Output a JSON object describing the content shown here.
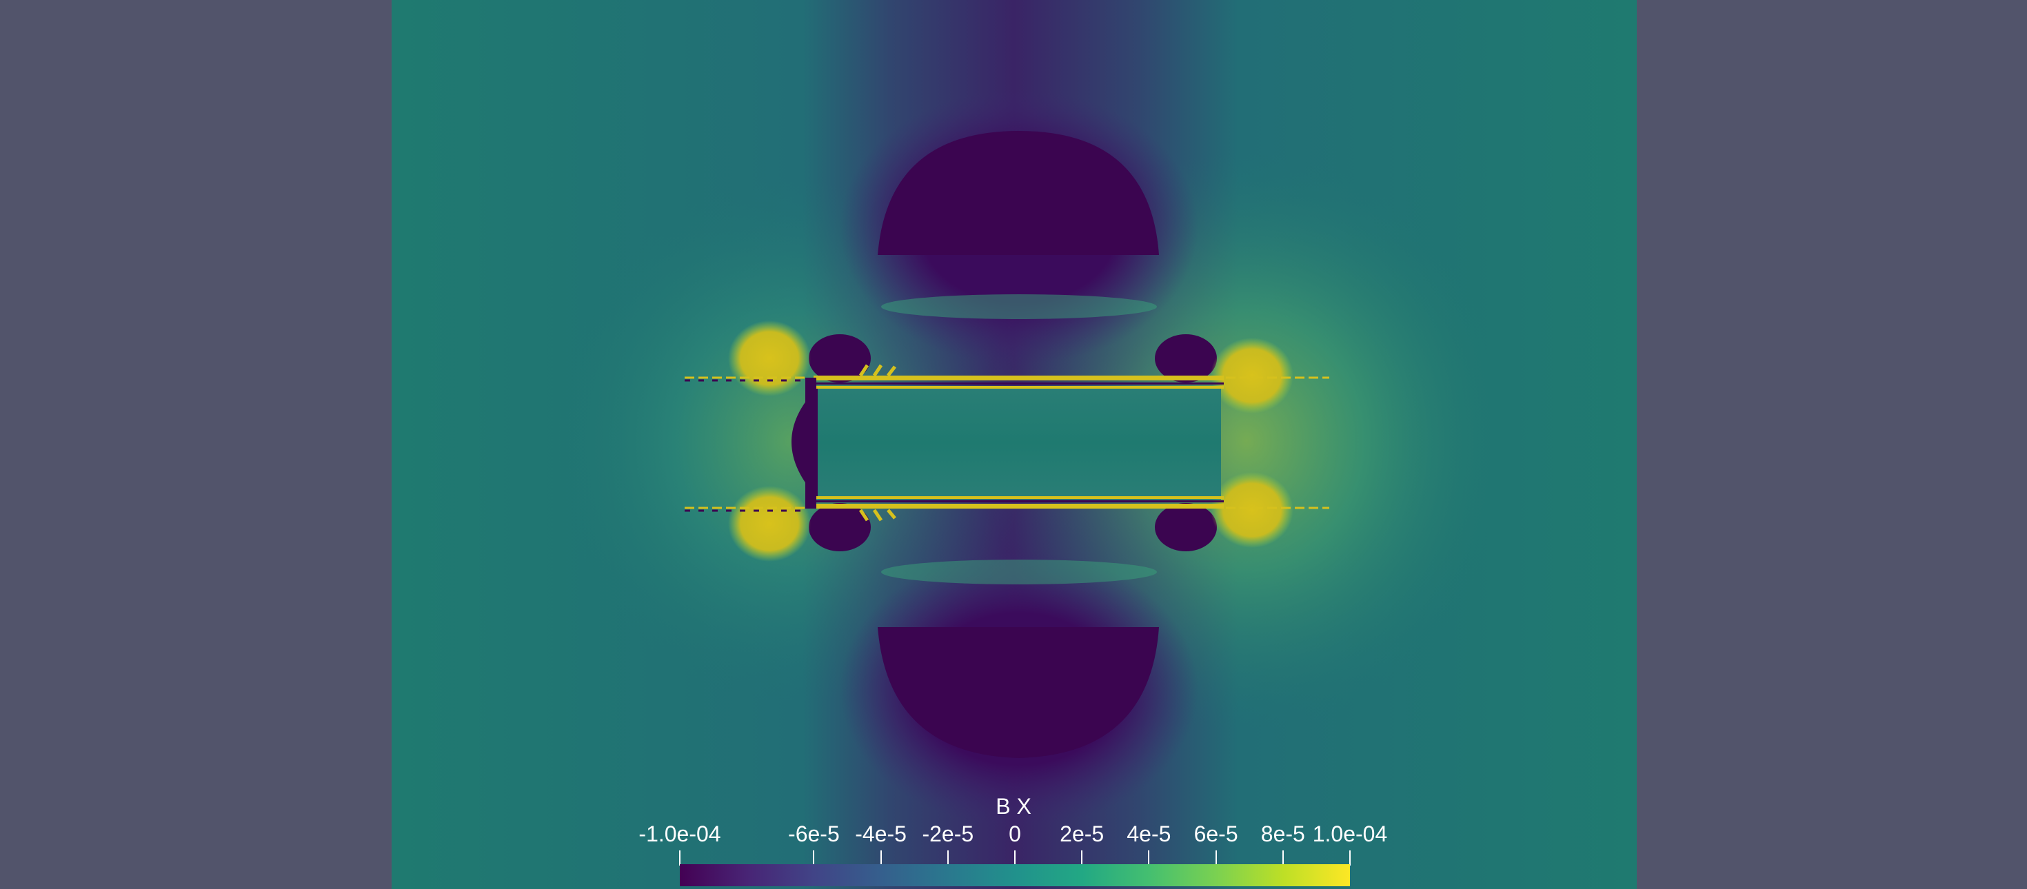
{
  "colorbar": {
    "title": "B X",
    "tick_labels": [
      "-1.0e-04",
      "-6e-5",
      "-4e-5",
      "-2e-5",
      "0",
      "2e-5",
      "4e-5",
      "6e-5",
      "8e-5",
      "1.0e-04"
    ],
    "tick_values": [
      -0.0001,
      -6e-05,
      -4e-05,
      -2e-05,
      0,
      2e-05,
      4e-05,
      6e-05,
      8e-05,
      0.0001
    ],
    "range": [
      -0.0001,
      0.0001
    ],
    "colormap": "viridis"
  },
  "colors": {
    "background": "#52546b",
    "field_neutral": "#20726e",
    "negative": "#440154",
    "positive": "#d6c11d"
  }
}
